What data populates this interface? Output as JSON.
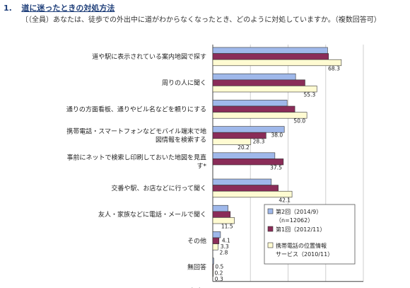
{
  "header": {
    "number": "1.",
    "title": "道に迷ったときの対処方法",
    "subtitle": "〔（全員）あなたは、徒歩での外出中に道がわからなくなったとき、どのように対処していますか。（複数回答可）"
  },
  "chart_data": {
    "type": "bar",
    "orientation": "horizontal",
    "unit_label": "（%）",
    "xlim": [
      0,
      80
    ],
    "xticks": [
      0,
      20,
      40,
      60,
      80
    ],
    "grid": true,
    "legend_position": "bottom-right",
    "categories": [
      [
        "道や駅に表示されている案内地図で探す"
      ],
      [
        "周りの人に聞く"
      ],
      [
        "通りの方面看板、通りやビル名などを頼りにする"
      ],
      [
        "携帯電話・スマートフォンなどモバイル端末で地",
        "図情報を検索する"
      ],
      [
        "事前にネットで検索し印刷しておいた地図を見直",
        "す*"
      ],
      [
        "交番や駅、お店などに行って聞く"
      ],
      [
        "友人・家族などに電話・メールで聞く"
      ],
      [
        "その他"
      ],
      [
        "無回答"
      ]
    ],
    "series": [
      {
        "name": "第2回（2014/9）",
        "name_line2": "（n=12062）",
        "color": "#9fb8ea",
        "values": [
          61.0,
          44.0,
          39.5,
          38.0,
          33.0,
          31.1,
          8.1,
          4.1,
          0.5
        ],
        "labels": [
          "61.0",
          "44.0",
          "39.5",
          "38.0",
          "33.0",
          "31.1",
          "8.1",
          "4.1",
          "0.5"
        ]
      },
      {
        "name": "第1回（2012/11）",
        "color": "#8a2c58",
        "values": [
          61.5,
          49.0,
          43.6,
          28.3,
          37.5,
          34.8,
          9.3,
          3.3,
          0.2
        ],
        "labels": [
          "61.5",
          "49.0",
          "43.6",
          "28.3",
          "37.5",
          "34.8",
          "9.3",
          "3.3",
          "0.2"
        ]
      },
      {
        "name": "携帯電話の位置情報",
        "name_line2": "サービス（2010/11）",
        "color": "#fffbd2",
        "values": [
          68.3,
          55.3,
          50.0,
          20.2,
          null,
          42.1,
          11.5,
          2.8,
          0.3
        ],
        "labels": [
          "68.3",
          "55.3",
          "50.0",
          "20.2",
          "",
          "42.1",
          "11.5",
          "2.8",
          "0.3"
        ]
      }
    ]
  }
}
